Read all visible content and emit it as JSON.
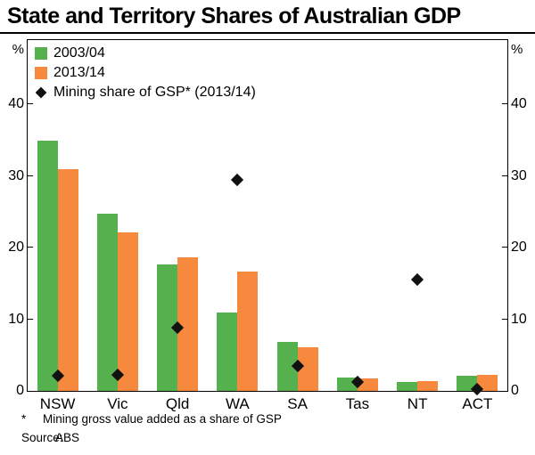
{
  "title": "State and Territory Shares of Australian GDP",
  "y_axis_unit": "%",
  "footnotes": {
    "marker": "*",
    "text": "Mining gross value added as a share of GSP",
    "source_label": "Source:",
    "source_value": "ABS"
  },
  "chart_data": {
    "type": "bar",
    "title": "State and Territory Shares of Australian GDP",
    "categories": [
      "NSW",
      "Vic",
      "Qld",
      "WA",
      "SA",
      "Tas",
      "NT",
      "ACT"
    ],
    "series": [
      {
        "name": "2003/04",
        "type": "bar",
        "color": "#55b14e",
        "values": [
          35.0,
          24.7,
          17.7,
          10.9,
          6.8,
          1.9,
          1.2,
          2.1
        ]
      },
      {
        "name": "2013/14",
        "type": "bar",
        "color": "#f6893d",
        "values": [
          31.0,
          22.2,
          18.7,
          16.7,
          6.1,
          1.7,
          1.4,
          2.3
        ]
      },
      {
        "name": "Mining share of GSP* (2013/14)",
        "type": "scatter",
        "marker": "diamond",
        "color": "#111111",
        "values": [
          2.1,
          2.3,
          8.8,
          29.5,
          3.5,
          1.2,
          15.5,
          0.3
        ]
      }
    ],
    "ylabel": "%",
    "ylim": [
      0,
      49
    ],
    "yticks": [
      0,
      10,
      20,
      30,
      40
    ],
    "grid": false,
    "legend_position": "top-left"
  }
}
